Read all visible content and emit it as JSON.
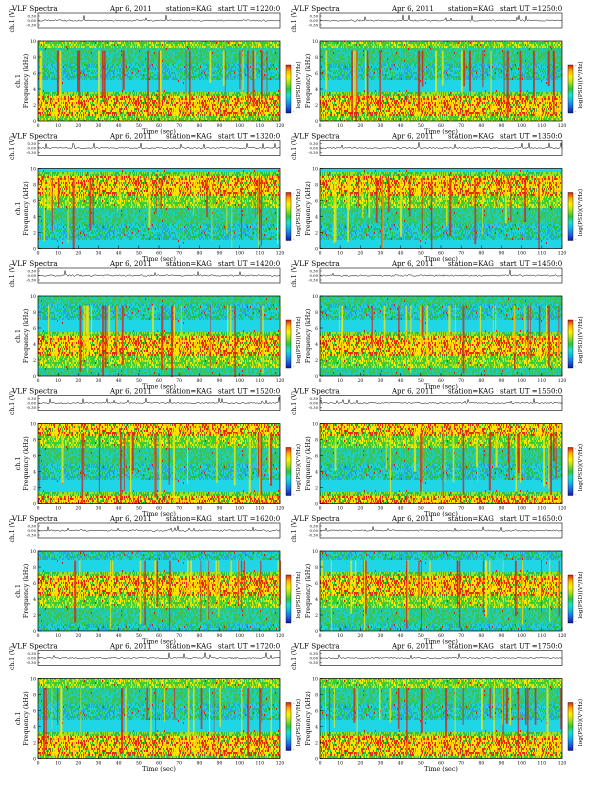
{
  "page_title": "VLF Spectra",
  "chart_data": [
    {
      "type": "heatmap",
      "title": "VLF Spectra",
      "date": "Apr 6, 2011",
      "station": "station=KAG",
      "start_ut": "start UT =1220:0",
      "ylabel": "Frequency (kHz)",
      "ch_label": "ch.1",
      "trace_label": "ch.1 (V)",
      "trace_ticks": [
        "0.30",
        "0.00",
        "-0.30"
      ],
      "xlabel": "Time (sec)",
      "xlim": [
        0,
        120
      ],
      "ylim": [
        0,
        10
      ],
      "x_ticks": [
        0,
        10,
        20,
        30,
        40,
        50,
        60,
        70,
        80,
        90,
        100,
        110,
        120
      ],
      "y_ticks": [
        0,
        2,
        4,
        6,
        8,
        10
      ],
      "colorbar_label": "log(PSD)(V²/Hz)",
      "colorbar_ticks": [
        "-",
        "-"
      ]
    },
    {
      "type": "heatmap",
      "title": "VLF Spectra",
      "date": "Apr 6, 2011",
      "station": "station=KAG",
      "start_ut": "start UT =1250:0",
      "ylabel": "Frequency (kHz)",
      "ch_label": "",
      "trace_label": "ch.1 (V)",
      "trace_ticks": [
        "0.30",
        "0.00",
        "-0.30"
      ],
      "xlabel": "Time (sec)",
      "xlim": [
        0,
        120
      ],
      "ylim": [
        0,
        10
      ],
      "x_ticks": [
        0,
        10,
        20,
        30,
        40,
        50,
        60,
        70,
        80,
        90,
        100,
        110,
        120
      ],
      "y_ticks": [
        0,
        2,
        4,
        6,
        8,
        10
      ],
      "colorbar_label": "log(PSD)(V²/Hz)",
      "colorbar_ticks": [
        "-",
        "-"
      ]
    },
    {
      "type": "heatmap",
      "title": "VLF Spectra",
      "date": "Apr 6, 2011",
      "station": "station=KAG",
      "start_ut": "start UT =1320:0",
      "ylabel": "Frequency (kHz)",
      "ch_label": "ch.1",
      "trace_label": "ch.1 (V)",
      "trace_ticks": [
        "0.30",
        "0.00",
        "-0.30"
      ],
      "xlabel": "Time (sec)",
      "xlim": [
        0,
        120
      ],
      "ylim": [
        0,
        10
      ],
      "x_ticks": [
        0,
        10,
        20,
        30,
        40,
        50,
        60,
        70,
        80,
        90,
        100,
        110,
        120
      ],
      "y_ticks": [
        0,
        2,
        4,
        6,
        8,
        10
      ],
      "colorbar_label": "log(PSD)(V²/Hz)",
      "colorbar_ticks": [
        "-",
        "-"
      ]
    },
    {
      "type": "heatmap",
      "title": "VLF Spectra",
      "date": "Apr 6, 2011",
      "station": "station=KAG",
      "start_ut": "start UT =1350:0",
      "ylabel": "Frequency (kHz)",
      "ch_label": "",
      "trace_label": "ch.1 (V)",
      "trace_ticks": [
        "0.30",
        "0.00",
        "-0.30"
      ],
      "xlabel": "Time (sec)",
      "xlim": [
        0,
        120
      ],
      "ylim": [
        0,
        10
      ],
      "x_ticks": [
        0,
        10,
        20,
        30,
        40,
        50,
        60,
        70,
        80,
        90,
        100,
        110,
        120
      ],
      "y_ticks": [
        0,
        2,
        4,
        6,
        8,
        10
      ],
      "colorbar_label": "log(PSD)(V²/Hz)",
      "colorbar_ticks": [
        "-",
        "-"
      ]
    },
    {
      "type": "heatmap",
      "title": "VLF Spectra",
      "date": "Apr 6, 2011",
      "station": "station=KAG",
      "start_ut": "start UT =1420:0",
      "ylabel": "Frequency (kHz)",
      "ch_label": "ch.1",
      "trace_label": "ch.1 (V)",
      "trace_ticks": [
        "0.30",
        "0.00",
        "-0.30"
      ],
      "xlabel": "Time (sec)",
      "xlim": [
        0,
        120
      ],
      "ylim": [
        0,
        10
      ],
      "x_ticks": [
        0,
        10,
        20,
        30,
        40,
        50,
        60,
        70,
        80,
        90,
        100,
        110,
        120
      ],
      "y_ticks": [
        0,
        2,
        4,
        6,
        8,
        10
      ],
      "colorbar_label": "log(PSD)(V²/Hz)",
      "colorbar_ticks": [
        "-",
        "-"
      ]
    },
    {
      "type": "heatmap",
      "title": "VLF Spectra",
      "date": "Apr 6, 2011",
      "station": "station=KAG",
      "start_ut": "start UT =1450:0",
      "ylabel": "Frequency (kHz)",
      "ch_label": "",
      "trace_label": "ch.1 (V)",
      "trace_ticks": [
        "0.30",
        "0.00",
        "-0.30"
      ],
      "xlabel": "Time (sec)",
      "xlim": [
        0,
        120
      ],
      "ylim": [
        0,
        10
      ],
      "x_ticks": [
        0,
        10,
        20,
        30,
        40,
        50,
        60,
        70,
        80,
        90,
        100,
        110,
        120
      ],
      "y_ticks": [
        0,
        2,
        4,
        6,
        8,
        10
      ],
      "colorbar_label": "log(PSD)(V²/Hz)",
      "colorbar_ticks": [
        "-",
        "-"
      ]
    },
    {
      "type": "heatmap",
      "title": "VLF Spectra",
      "date": "Apr 6, 2011",
      "station": "station=KAG",
      "start_ut": "start UT =1520:0",
      "ylabel": "Frequency (kHz)",
      "ch_label": "ch.1",
      "trace_label": "ch.1 (V)",
      "trace_ticks": [
        "0.30",
        "0.00",
        "-0.30"
      ],
      "xlabel": "Time (sec)",
      "xlim": [
        0,
        120
      ],
      "ylim": [
        0,
        10
      ],
      "x_ticks": [
        0,
        10,
        20,
        30,
        40,
        50,
        60,
        70,
        80,
        90,
        100,
        110,
        120
      ],
      "y_ticks": [
        0,
        2,
        4,
        6,
        8,
        10
      ],
      "colorbar_label": "log(PSD)(V²/Hz)",
      "colorbar_ticks": [
        "-",
        "-"
      ]
    },
    {
      "type": "heatmap",
      "title": "VLF Spectra",
      "date": "Apr 6, 2011",
      "station": "station=KAG",
      "start_ut": "start UT =1550:0",
      "ylabel": "Frequency (kHz)",
      "ch_label": "",
      "trace_label": "ch.1 (V)",
      "trace_ticks": [
        "0.30",
        "0.00",
        "-0.30"
      ],
      "xlabel": "Time (sec)",
      "xlim": [
        0,
        120
      ],
      "ylim": [
        0,
        10
      ],
      "x_ticks": [
        0,
        10,
        20,
        30,
        40,
        50,
        60,
        70,
        80,
        90,
        100,
        110,
        120
      ],
      "y_ticks": [
        0,
        2,
        4,
        6,
        8,
        10
      ],
      "colorbar_label": "log(PSD)(V²/Hz)",
      "colorbar_ticks": [
        "-",
        "-"
      ]
    },
    {
      "type": "heatmap",
      "title": "VLF Spectra",
      "date": "Apr 6, 2011",
      "station": "station=KAG",
      "start_ut": "start UT =1620:0",
      "ylabel": "Frequency (kHz)",
      "ch_label": "ch.1",
      "trace_label": "ch.1 (V)",
      "trace_ticks": [
        "0.30",
        "0.00",
        "-0.30"
      ],
      "xlabel": "Time (sec)",
      "xlim": [
        0,
        120
      ],
      "ylim": [
        0,
        10
      ],
      "x_ticks": [
        0,
        10,
        20,
        30,
        40,
        50,
        60,
        70,
        80,
        90,
        100,
        110,
        120
      ],
      "y_ticks": [
        0,
        2,
        4,
        6,
        8,
        10
      ],
      "colorbar_label": "log(PSD)(V²/Hz)",
      "colorbar_ticks": [
        "-",
        "-"
      ]
    },
    {
      "type": "heatmap",
      "title": "VLF Spectra",
      "date": "Apr 6, 2011",
      "station": "station=KAG",
      "start_ut": "start UT =1650:0",
      "ylabel": "Frequency (kHz)",
      "ch_label": "",
      "trace_label": "ch.1 (V)",
      "trace_ticks": [
        "0.30",
        "0.00",
        "-0.30"
      ],
      "xlabel": "Time (sec)",
      "xlim": [
        0,
        120
      ],
      "ylim": [
        0,
        10
      ],
      "x_ticks": [
        0,
        10,
        20,
        30,
        40,
        50,
        60,
        70,
        80,
        90,
        100,
        110,
        120
      ],
      "y_ticks": [
        0,
        2,
        4,
        6,
        8,
        10
      ],
      "colorbar_label": "log(PSD)(V²/Hz)",
      "colorbar_ticks": [
        "-",
        "-"
      ]
    },
    {
      "type": "heatmap",
      "title": "VLF Spectra",
      "date": "Apr 6, 2011",
      "station": "station=KAG",
      "start_ut": "start UT =1720:0",
      "ylabel": "Frequency (kHz)",
      "ch_label": "ch.1",
      "trace_label": "ch.1 (V)",
      "trace_ticks": [
        "0.30",
        "0.00",
        "-0.30"
      ],
      "xlabel": "Time (sec)",
      "xlim": [
        0,
        120
      ],
      "ylim": [
        0,
        10
      ],
      "x_ticks": [
        0,
        10,
        20,
        30,
        40,
        50,
        60,
        70,
        80,
        90,
        100,
        110,
        120
      ],
      "y_ticks": [
        0,
        2,
        4,
        6,
        8,
        10
      ],
      "colorbar_label": "log(PSD)(V²/Hz)",
      "colorbar_ticks": [
        "-",
        "-"
      ]
    },
    {
      "type": "heatmap",
      "title": "VLF Spectra",
      "date": "Apr 6, 2011",
      "station": "station=KAG",
      "start_ut": "start UT =1750:0",
      "ylabel": "Frequency (kHz)",
      "ch_label": "",
      "trace_label": "ch.1 (V)",
      "trace_ticks": [
        "0.30",
        "0.00",
        "-0.30"
      ],
      "xlabel": "Time (sec)",
      "xlim": [
        0,
        120
      ],
      "ylim": [
        0,
        10
      ],
      "x_ticks": [
        0,
        10,
        20,
        30,
        40,
        50,
        60,
        70,
        80,
        90,
        100,
        110,
        120
      ],
      "y_ticks": [
        0,
        2,
        4,
        6,
        8,
        10
      ],
      "colorbar_label": "log(PSD)(V²/Hz)",
      "colorbar_ticks": [
        "-",
        "-"
      ]
    }
  ]
}
